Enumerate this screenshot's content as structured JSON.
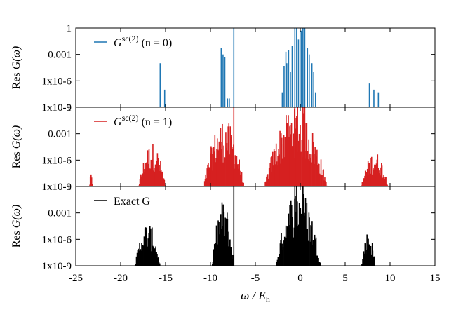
{
  "chart_data": {
    "type": "stem",
    "xlabel": "ω / E",
    "xlabel_sub": "h",
    "x_range": [
      -25,
      15
    ],
    "x_ticks": [
      -25,
      -20,
      -15,
      -10,
      -5,
      0,
      5,
      10,
      15
    ],
    "y_scale": "log",
    "y_range": [
      1e-09,
      1
    ],
    "y_tick_labels": [
      "1",
      "0.001",
      "1x10-6",
      "1x10-9"
    ],
    "panels": [
      {
        "ylabel": "Res G(ω)",
        "legend": "G (n = 0)",
        "legend_sup": "sc(2)",
        "legend_position": "top-left",
        "color": "#1f77b4",
        "stems": [
          [
            -15.6,
            0.0001
          ],
          [
            -15.1,
            1e-07
          ],
          [
            -8.8,
            0.005
          ],
          [
            -8.6,
            0.001
          ],
          [
            -8.4,
            0.0005
          ],
          [
            -8.1,
            1e-08
          ],
          [
            -7.9,
            1e-08
          ],
          [
            -7.4,
            1
          ],
          [
            -2.0,
            5e-08
          ],
          [
            -1.8,
            5e-05
          ],
          [
            -1.6,
            0.002
          ],
          [
            -1.5,
            0.0001
          ],
          [
            -1.3,
            0.003
          ],
          [
            -1.1,
            1e-05
          ],
          [
            -0.9,
            0.01
          ],
          [
            -0.6,
            1
          ],
          [
            -0.4,
            1
          ],
          [
            -0.2,
            0.05
          ],
          [
            0.1,
            0.5
          ],
          [
            0.3,
            1
          ],
          [
            0.5,
            1
          ],
          [
            0.8,
            0.005
          ],
          [
            1.0,
            0.001
          ],
          [
            1.3,
            0.0001
          ],
          [
            1.5,
            1e-05
          ],
          [
            1.7,
            5e-08
          ],
          [
            7.7,
            5e-07
          ],
          [
            8.2,
            1e-07
          ],
          [
            8.7,
            5e-08
          ]
        ]
      },
      {
        "ylabel": "Res G(ω)",
        "legend": "G (n = 1)",
        "legend_sup": "sc(2)",
        "legend_position": "top-left",
        "color": "#d62020",
        "clusters": [
          {
            "center": -23.3,
            "width": 0.3,
            "peak": 3e-08
          },
          {
            "center": -16.5,
            "width": 3.0,
            "peak": 0.0001
          },
          {
            "center": -8.5,
            "width": 4.5,
            "peak": 0.05
          },
          {
            "center": -0.5,
            "width": 7.0,
            "peak": 1
          },
          {
            "center": 8.3,
            "width": 3.0,
            "peak": 1e-05
          }
        ],
        "stems": [
          [
            -7.4,
            1
          ],
          [
            -0.6,
            1
          ],
          [
            -0.3,
            1
          ],
          [
            0.3,
            1
          ],
          [
            0.5,
            1
          ]
        ]
      },
      {
        "ylabel": "Res G(ω)",
        "legend": "Exact G",
        "legend_position": "top-left",
        "color": "#000000",
        "clusters": [
          {
            "center": -17.0,
            "width": 2.8,
            "peak": 0.0001
          },
          {
            "center": -8.6,
            "width": 2.4,
            "peak": 0.03
          },
          {
            "center": -0.2,
            "width": 5.0,
            "peak": 1
          },
          {
            "center": 7.6,
            "width": 1.5,
            "peak": 1e-05
          }
        ],
        "stems": [
          [
            -7.4,
            1
          ],
          [
            -0.6,
            1
          ],
          [
            -0.4,
            1
          ],
          [
            0.3,
            1
          ]
        ]
      }
    ]
  }
}
